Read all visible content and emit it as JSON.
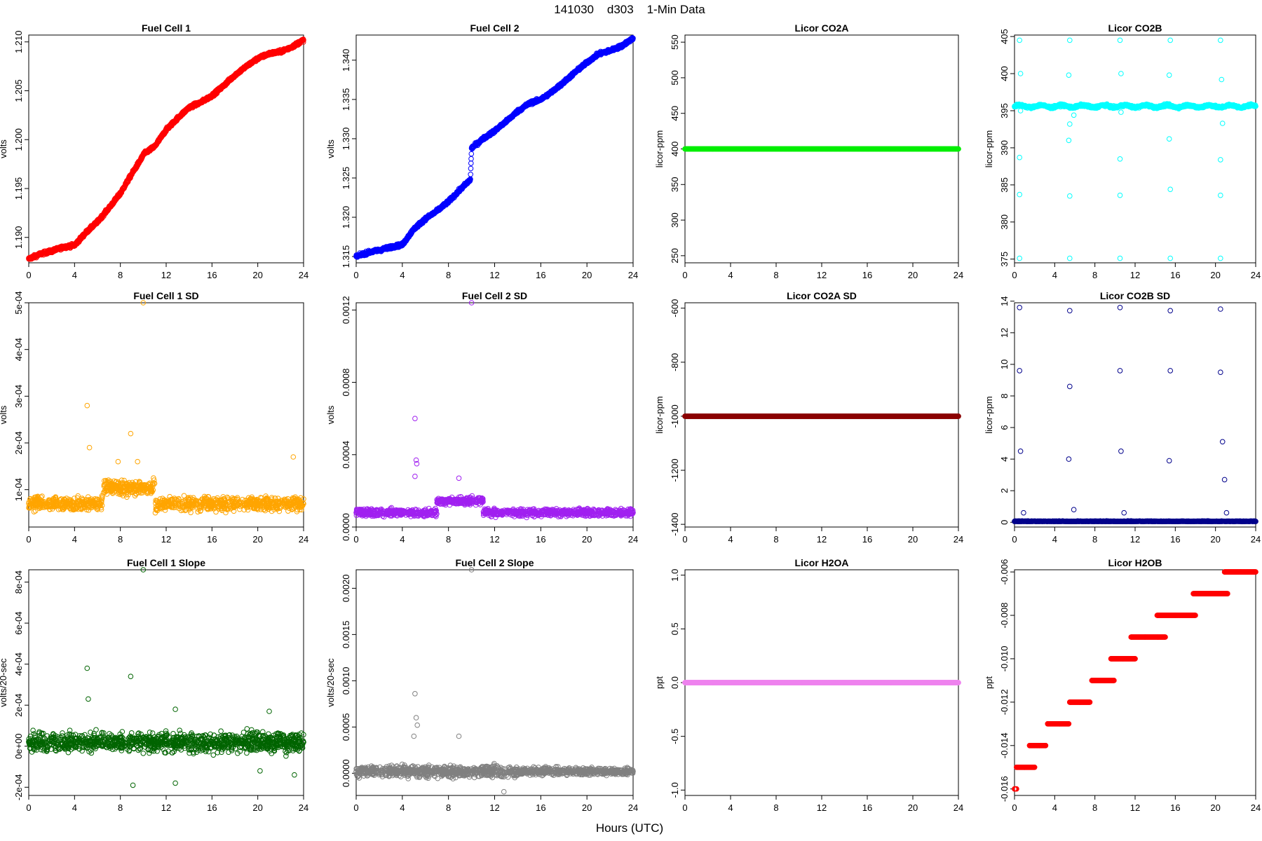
{
  "figure": {
    "title": "141030    d303    1-Min Data",
    "xlabel": "Hours (UTC)"
  },
  "chart_data": [
    {
      "type": "scatter",
      "title": "Fuel Cell 1",
      "ylabel": "volts",
      "color": "#ff0000",
      "xlim": [
        0,
        24
      ],
      "ylim": [
        1.1874,
        1.2107
      ],
      "xticks": [
        0,
        4,
        8,
        12,
        16,
        20,
        24
      ],
      "yticks": [
        1.19,
        1.195,
        1.2,
        1.205,
        1.21
      ],
      "ytick_labels": [
        "1.190",
        "1.195",
        "1.200",
        "1.205",
        "1.210"
      ],
      "points": [
        [
          0.0,
          1.1878
        ],
        [
          1.0,
          1.1883
        ],
        [
          2.0,
          1.1886
        ],
        [
          3.0,
          1.189
        ],
        [
          4.0,
          1.1892
        ],
        [
          5.0,
          1.1905
        ],
        [
          6.0,
          1.1916
        ],
        [
          7.0,
          1.193
        ],
        [
          8.0,
          1.1945
        ],
        [
          9.0,
          1.1965
        ],
        [
          9.9,
          1.1982
        ],
        [
          10.0,
          1.1985
        ],
        [
          11.0,
          1.1993
        ],
        [
          12.0,
          1.201
        ],
        [
          13.0,
          1.2022
        ],
        [
          14.0,
          1.2033
        ],
        [
          15.0,
          1.2038
        ],
        [
          16.0,
          1.2045
        ],
        [
          17.0,
          1.2055
        ],
        [
          18.0,
          1.2066
        ],
        [
          19.0,
          1.2075
        ],
        [
          20.0,
          1.2083
        ],
        [
          21.0,
          1.2088
        ],
        [
          22.0,
          1.209
        ],
        [
          23.0,
          1.2095
        ],
        [
          24.0,
          1.2102
        ]
      ]
    },
    {
      "type": "scatter",
      "title": "Fuel Cell 2",
      "ylabel": "volts",
      "color": "#0000ff",
      "xlim": [
        0,
        24
      ],
      "ylim": [
        1.3142,
        1.3432
      ],
      "xticks": [
        0,
        4,
        8,
        12,
        16,
        20,
        24
      ],
      "yticks": [
        1.315,
        1.32,
        1.325,
        1.33,
        1.335,
        1.34
      ],
      "ytick_labels": [
        "1.315",
        "1.320",
        "1.325",
        "1.330",
        "1.335",
        "1.340"
      ],
      "points": [
        [
          0.0,
          1.315
        ],
        [
          1.0,
          1.3155
        ],
        [
          2.0,
          1.3158
        ],
        [
          3.0,
          1.3162
        ],
        [
          4.0,
          1.3165
        ],
        [
          5.0,
          1.3185
        ],
        [
          6.0,
          1.3198
        ],
        [
          7.0,
          1.3208
        ],
        [
          8.0,
          1.322
        ],
        [
          9.0,
          1.3235
        ],
        [
          9.9,
          1.3248
        ],
        [
          10.0,
          1.3288
        ],
        [
          11.0,
          1.33
        ],
        [
          12.0,
          1.331
        ],
        [
          13.0,
          1.3322
        ],
        [
          14.0,
          1.3335
        ],
        [
          15.0,
          1.3345
        ],
        [
          16.0,
          1.335
        ],
        [
          17.0,
          1.336
        ],
        [
          18.0,
          1.3372
        ],
        [
          19.0,
          1.3385
        ],
        [
          20.0,
          1.3397
        ],
        [
          21.0,
          1.3408
        ],
        [
          22.0,
          1.3412
        ],
        [
          23.0,
          1.3418
        ],
        [
          24.0,
          1.3428
        ]
      ]
    },
    {
      "type": "scatter",
      "title": "Licor CO2A",
      "ylabel": "licor-ppm",
      "color": "#00ee00",
      "xlim": [
        0,
        24
      ],
      "ylim": [
        240,
        560
      ],
      "xticks": [
        0,
        4,
        8,
        12,
        16,
        20,
        24
      ],
      "yticks": [
        250,
        300,
        350,
        400,
        450,
        500,
        550
      ],
      "ytick_labels": [
        "250",
        "300",
        "350",
        "400",
        "450",
        "500",
        "550"
      ],
      "points": [
        [
          0,
          400
        ],
        [
          24,
          400
        ]
      ]
    },
    {
      "type": "scatter",
      "title": "Licor CO2B",
      "ylabel": "licor-ppm",
      "color": "#00ffff",
      "xlim": [
        0,
        24
      ],
      "ylim": [
        374.5,
        405.2
      ],
      "xticks": [
        0,
        4,
        8,
        12,
        16,
        20,
        24
      ],
      "yticks": [
        375,
        380,
        385,
        390,
        395,
        400,
        405
      ],
      "ytick_labels": [
        "375",
        "380",
        "385",
        "390",
        "395",
        "400",
        "405"
      ],
      "points": [
        [
          0,
          395.6
        ],
        [
          24,
          395.6
        ],
        [
          0.5,
          404.5
        ],
        [
          5.5,
          404.5
        ],
        [
          10.5,
          404.5
        ],
        [
          15.5,
          404.5
        ],
        [
          20.5,
          404.5
        ],
        [
          0.5,
          375.1
        ],
        [
          5.5,
          375.1
        ],
        [
          10.5,
          375.1
        ],
        [
          15.5,
          375.1
        ],
        [
          20.5,
          375.1
        ],
        [
          0.6,
          400.0
        ],
        [
          5.4,
          399.8
        ],
        [
          10.6,
          400.0
        ],
        [
          15.4,
          399.8
        ],
        [
          20.6,
          399.2
        ],
        [
          0.5,
          388.7
        ],
        [
          5.4,
          391.0
        ],
        [
          10.5,
          388.5
        ],
        [
          15.4,
          391.2
        ],
        [
          20.5,
          388.4
        ],
        [
          0.5,
          383.7
        ],
        [
          5.5,
          383.5
        ],
        [
          10.5,
          383.6
        ],
        [
          15.5,
          384.4
        ],
        [
          20.5,
          383.6
        ],
        [
          0.6,
          395.0
        ],
        [
          5.5,
          393.2
        ],
        [
          10.6,
          394.8
        ],
        [
          20.7,
          393.3
        ],
        [
          5.9,
          394.4
        ]
      ]
    },
    {
      "type": "scatter",
      "title": "Fuel Cell 1 SD",
      "ylabel": "volts",
      "color": "#ffa500",
      "xlim": [
        0,
        24
      ],
      "ylim": [
        2e-05,
        0.0005
      ],
      "xticks": [
        0,
        4,
        8,
        12,
        16,
        20,
        24
      ],
      "yticks": [
        0.0001,
        0.0002,
        0.0003,
        0.0004,
        0.0005
      ],
      "ytick_labels": [
        "1e-04",
        "2e-04",
        "3e-04",
        "4e-04",
        "5e-04"
      ],
      "points": [
        [
          0,
          7e-05
        ],
        [
          24,
          7e-05
        ],
        [
          10,
          0.0005
        ],
        [
          5.1,
          0.00028
        ],
        [
          8.9,
          0.00022
        ],
        [
          5.3,
          0.00019
        ],
        [
          23.1,
          0.00017
        ],
        [
          9.5,
          0.00016
        ],
        [
          7.8,
          0.00016
        ]
      ]
    },
    {
      "type": "scatter",
      "title": "Fuel Cell 2 SD",
      "ylabel": "volts",
      "color": "#a020f0",
      "xlim": [
        0,
        24
      ],
      "ylim": [
        0.0,
        0.00124
      ],
      "xticks": [
        0,
        4,
        8,
        12,
        16,
        20,
        24
      ],
      "yticks": [
        0.0,
        0.0004,
        0.0008,
        0.0012
      ],
      "ytick_labels": [
        "0.0000",
        "0.0004",
        "0.0008",
        "0.0012"
      ],
      "points": [
        [
          0,
          8e-05
        ],
        [
          24,
          8e-05
        ],
        [
          10,
          0.00124
        ],
        [
          5.1,
          0.0006
        ],
        [
          5.2,
          0.00037
        ],
        [
          5.25,
          0.00035
        ],
        [
          5.1,
          0.00028
        ],
        [
          8.9,
          0.00027
        ]
      ]
    },
    {
      "type": "scatter",
      "title": "Licor CO2A SD",
      "ylabel": "licor-ppm",
      "color": "#8b0000",
      "xlim": [
        0,
        24
      ],
      "ylim": [
        -1410,
        -580
      ],
      "xticks": [
        0,
        4,
        8,
        12,
        16,
        20,
        24
      ],
      "yticks": [
        -1400,
        -1200,
        -1000,
        -800,
        -600
      ],
      "ytick_labels": [
        "-1400",
        "-1200",
        "-1000",
        "-800",
        "-600"
      ],
      "points": [
        [
          0,
          -1000
        ],
        [
          24,
          -1000
        ]
      ]
    },
    {
      "type": "scatter",
      "title": "Licor CO2B SD",
      "ylabel": "licor-ppm",
      "color": "#00008b",
      "xlim": [
        0,
        24
      ],
      "ylim": [
        -0.3,
        13.9
      ],
      "xticks": [
        0,
        4,
        8,
        12,
        16,
        20,
        24
      ],
      "yticks": [
        0,
        2,
        4,
        6,
        8,
        10,
        12,
        14
      ],
      "ytick_labels": [
        "0",
        "2",
        "4",
        "6",
        "8",
        "10",
        "12",
        "14"
      ],
      "points": [
        [
          0,
          0.05
        ],
        [
          24,
          0.05
        ],
        [
          0.5,
          13.6
        ],
        [
          5.5,
          13.4
        ],
        [
          10.5,
          13.6
        ],
        [
          15.5,
          13.4
        ],
        [
          20.5,
          13.5
        ],
        [
          0.5,
          9.6
        ],
        [
          5.5,
          8.6
        ],
        [
          10.5,
          9.6
        ],
        [
          15.5,
          9.6
        ],
        [
          20.5,
          9.5
        ],
        [
          0.6,
          4.5
        ],
        [
          5.4,
          4.0
        ],
        [
          10.6,
          4.5
        ],
        [
          15.4,
          3.9
        ],
        [
          20.7,
          5.1
        ],
        [
          20.9,
          2.7
        ],
        [
          0.9,
          0.6
        ],
        [
          5.9,
          0.8
        ],
        [
          10.9,
          0.6
        ],
        [
          21.1,
          0.6
        ]
      ]
    },
    {
      "type": "scatter",
      "title": "Fuel Cell 1 Slope",
      "ylabel": "volts/20-sec",
      "color": "#006400",
      "xlim": [
        0,
        24
      ],
      "ylim": [
        -0.00024,
        0.00086
      ],
      "xticks": [
        0,
        4,
        8,
        12,
        16,
        20,
        24
      ],
      "yticks": [
        -0.0002,
        0.0,
        0.0002,
        0.0004,
        0.0006,
        0.0008
      ],
      "ytick_labels": [
        "-2e-04",
        "0e+00",
        "2e-04",
        "4e-04",
        "6e-04",
        "8e-04"
      ],
      "points": [
        [
          0,
          2e-05
        ],
        [
          24,
          2e-05
        ],
        [
          10,
          0.00086
        ],
        [
          5.1,
          0.00038
        ],
        [
          8.9,
          0.00034
        ],
        [
          5.2,
          0.00023
        ],
        [
          12.8,
          0.00018
        ],
        [
          21,
          0.00017
        ],
        [
          9.1,
          -0.00019
        ],
        [
          12.8,
          -0.00018
        ],
        [
          20.2,
          -0.00012
        ],
        [
          23.2,
          -0.00014
        ]
      ]
    },
    {
      "type": "scatter",
      "title": "Fuel Cell 2 Slope",
      "ylabel": "volts/20-sec",
      "color": "#808080",
      "xlim": [
        0,
        24
      ],
      "ylim": [
        -0.00024,
        0.0022
      ],
      "xticks": [
        0,
        4,
        8,
        12,
        16,
        20,
        24
      ],
      "yticks": [
        0.0,
        0.0005,
        0.001,
        0.0015,
        0.002
      ],
      "ytick_labels": [
        "0.0000",
        "0.0005",
        "0.0010",
        "0.0015",
        "0.0020"
      ],
      "points": [
        [
          0,
          2e-05
        ],
        [
          24,
          2e-05
        ],
        [
          10,
          0.0022
        ],
        [
          5.1,
          0.00086
        ],
        [
          5.2,
          0.0006
        ],
        [
          5.3,
          0.00052
        ],
        [
          5.0,
          0.0004
        ],
        [
          8.9,
          0.0004
        ],
        [
          12.8,
          -0.0002
        ]
      ]
    },
    {
      "type": "scatter",
      "title": "Licor H2OA",
      "ylabel": "ppt",
      "color": "#ee82ee",
      "xlim": [
        0,
        24
      ],
      "ylim": [
        -1.05,
        1.05
      ],
      "xticks": [
        0,
        4,
        8,
        12,
        16,
        20,
        24
      ],
      "yticks": [
        -1.0,
        -0.5,
        0.0,
        0.5,
        1.0
      ],
      "ytick_labels": [
        "-1.0",
        "-0.5",
        "0.0",
        "0.5",
        "1.0"
      ],
      "points": [
        [
          0,
          0
        ],
        [
          24,
          0
        ]
      ]
    },
    {
      "type": "scatter",
      "title": "Licor H2OB",
      "ylabel": "ppt",
      "color": "#ff0000",
      "xlim": [
        0,
        24
      ],
      "ylim": [
        -0.0163,
        -0.0059
      ],
      "xticks": [
        0,
        4,
        8,
        12,
        16,
        20,
        24
      ],
      "yticks": [
        -0.016,
        -0.014,
        -0.012,
        -0.01,
        -0.008,
        -0.006
      ],
      "ytick_labels": [
        "-0.016",
        "-0.014",
        "-0.012",
        "-0.010",
        "-0.008",
        "-0.006"
      ],
      "points": [
        [
          0.0,
          -0.016
        ],
        [
          0.2,
          -0.016
        ],
        [
          0.2,
          -0.015
        ],
        [
          1.0,
          -0.015
        ],
        [
          2.0,
          -0.015
        ],
        [
          1.5,
          -0.014
        ],
        [
          2.5,
          -0.014
        ],
        [
          3.1,
          -0.014
        ],
        [
          3.3,
          -0.013
        ],
        [
          4.5,
          -0.013
        ],
        [
          5.4,
          -0.013
        ],
        [
          5.5,
          -0.012
        ],
        [
          6.5,
          -0.012
        ],
        [
          7.5,
          -0.012
        ],
        [
          7.7,
          -0.011
        ],
        [
          9.0,
          -0.011
        ],
        [
          9.9,
          -0.011
        ],
        [
          9.6,
          -0.01
        ],
        [
          10.8,
          -0.01
        ],
        [
          12.0,
          -0.01
        ],
        [
          11.6,
          -0.009
        ],
        [
          13.0,
          -0.009
        ],
        [
          15.0,
          -0.009
        ],
        [
          14.2,
          -0.008
        ],
        [
          16.0,
          -0.008
        ],
        [
          18.0,
          -0.008
        ],
        [
          17.8,
          -0.007
        ],
        [
          19.5,
          -0.007
        ],
        [
          21.2,
          -0.007
        ],
        [
          20.9,
          -0.006
        ],
        [
          22.5,
          -0.006
        ],
        [
          24.0,
          -0.006
        ]
      ]
    }
  ]
}
